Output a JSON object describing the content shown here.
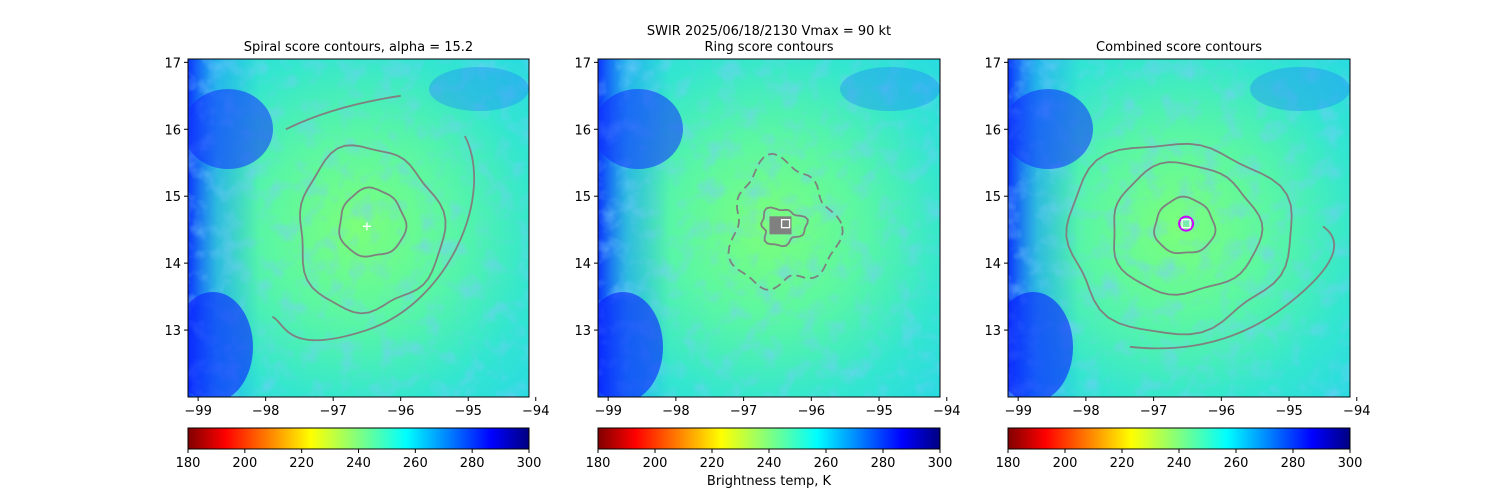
{
  "figure": {
    "suptitle_line1": "SWIR  2025/06/18/2130    Vmax = 90 kt",
    "colorbar_label": "Brightness temp, K"
  },
  "colorbar": {
    "ticks": [
      180,
      200,
      220,
      240,
      260,
      280,
      300
    ],
    "range": [
      180,
      300
    ],
    "colormap": "jet_reversed"
  },
  "chart_data": [
    {
      "type": "heatmap",
      "title": "Spiral score contours, alpha = 15.2",
      "xlabel": "",
      "ylabel": "",
      "xlim": [
        -99.15,
        -94.1
      ],
      "ylim": [
        12.0,
        17.05
      ],
      "xticks": [
        -99,
        -98,
        -97,
        -96,
        -95,
        -94
      ],
      "yticks": [
        13,
        14,
        15,
        16,
        17
      ],
      "storm_center": {
        "lon": -96.5,
        "lat": 14.55
      },
      "marker": {
        "type": "plus",
        "lon": -96.5,
        "lat": 14.55,
        "color": "#ffffff"
      }
    },
    {
      "type": "heatmap",
      "title": "Ring score contours",
      "xlabel": "",
      "ylabel": "",
      "xlim": [
        -99.15,
        -94.1
      ],
      "ylim": [
        12.0,
        17.05
      ],
      "xticks": [
        -99,
        -98,
        -97,
        -96,
        -95,
        -94
      ],
      "yticks": [
        13,
        14,
        15,
        16,
        17
      ],
      "storm_center": {
        "lon": -96.5,
        "lat": 14.55
      },
      "marker": {
        "type": "square",
        "lon": -96.38,
        "lat": 14.59,
        "color": "#ffffff"
      }
    },
    {
      "type": "heatmap",
      "title": "Combined score contours",
      "xlabel": "",
      "ylabel": "",
      "xlim": [
        -99.15,
        -94.1
      ],
      "ylim": [
        12.0,
        17.05
      ],
      "xticks": [
        -99,
        -98,
        -97,
        -96,
        -95,
        -94
      ],
      "yticks": [
        13,
        14,
        15,
        16,
        17
      ],
      "storm_center": {
        "lon": -96.5,
        "lat": 14.55
      },
      "marker": {
        "type": "square",
        "lon": -96.52,
        "lat": 14.59,
        "color": "#ffffff"
      },
      "ring_marker": {
        "lon": -96.52,
        "lat": 14.59,
        "color": "#cc00ff"
      }
    }
  ],
  "colors": {
    "contour": "#808080",
    "bg_field": "#55f4a0"
  }
}
